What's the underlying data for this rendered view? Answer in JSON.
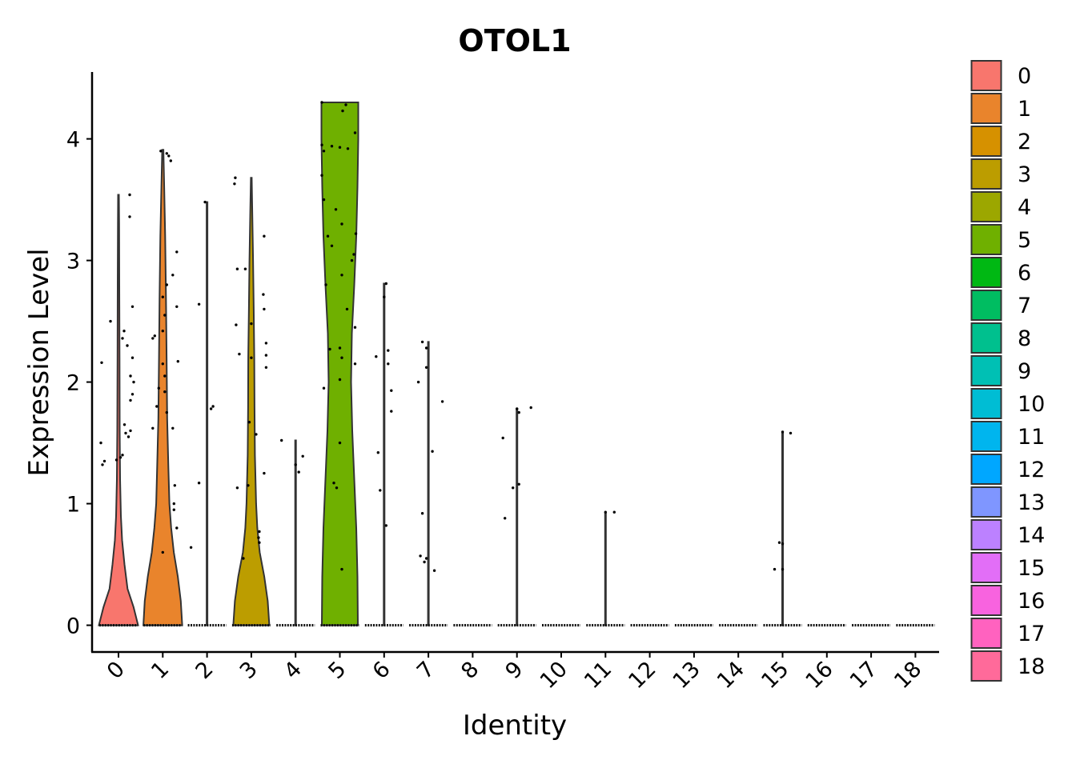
{
  "chart_data": {
    "type": "violin",
    "title": "OTOL1",
    "xlabel": "Identity",
    "ylabel": "Expression Level",
    "ylim": [
      -0.22,
      4.55
    ],
    "yticks": [
      0,
      1,
      2,
      3,
      4
    ],
    "categories": [
      "0",
      "1",
      "2",
      "3",
      "4",
      "5",
      "6",
      "7",
      "8",
      "9",
      "10",
      "11",
      "12",
      "13",
      "14",
      "15",
      "16",
      "17",
      "18"
    ],
    "colors": [
      "#F8766D",
      "#E9842C",
      "#D69100",
      "#BC9D00",
      "#9CA700",
      "#6FB000",
      "#00B813",
      "#00BD61",
      "#00C08E",
      "#00C0B4",
      "#00BDD4",
      "#00B5EE",
      "#00A7FF",
      "#7F96FF",
      "#BC81FF",
      "#E26EF7",
      "#F863DF",
      "#FF62BF",
      "#FF6A9A"
    ],
    "legend": {
      "position": "right",
      "entries": [
        "0",
        "1",
        "2",
        "3",
        "4",
        "5",
        "6",
        "7",
        "8",
        "9",
        "10",
        "11",
        "12",
        "13",
        "14",
        "15",
        "16",
        "17",
        "18"
      ]
    },
    "grid": false,
    "series": [
      {
        "name": "0",
        "max": 3.54,
        "shape": [
          [
            0,
            0.98
          ],
          [
            0.15,
            0.75
          ],
          [
            0.3,
            0.45
          ],
          [
            0.5,
            0.3
          ],
          [
            0.7,
            0.18
          ],
          [
            0.9,
            0.12
          ],
          [
            1.2,
            0.08
          ],
          [
            1.6,
            0.06
          ],
          [
            2.2,
            0.05
          ],
          [
            2.8,
            0.04
          ],
          [
            3.3,
            0.03
          ],
          [
            3.54,
            0.02
          ]
        ],
        "points": [
          [
            2.5,
            -0.2
          ],
          [
            2.16,
            -0.42
          ],
          [
            1.5,
            -0.44
          ],
          [
            1.35,
            -0.35
          ],
          [
            1.32,
            -0.4
          ],
          [
            1.4,
            0.1
          ],
          [
            1.38,
            0.05
          ],
          [
            1.36,
            -0.05
          ],
          [
            2.42,
            0.14
          ],
          [
            2.36,
            0.1
          ],
          [
            2.3,
            0.22
          ],
          [
            2.2,
            0.35
          ],
          [
            2.05,
            0.3
          ],
          [
            1.9,
            0.35
          ],
          [
            1.85,
            0.3
          ],
          [
            1.6,
            0.3
          ],
          [
            1.55,
            0.25
          ],
          [
            1.58,
            0.18
          ],
          [
            2.62,
            0.35
          ],
          [
            3.36,
            0.28
          ],
          [
            3.54,
            0.28
          ],
          [
            2.0,
            0.38
          ],
          [
            1.65,
            0.15
          ]
        ]
      },
      {
        "name": "1",
        "max": 3.91,
        "shape": [
          [
            0,
            0.97
          ],
          [
            0.2,
            0.9
          ],
          [
            0.4,
            0.75
          ],
          [
            0.6,
            0.55
          ],
          [
            0.8,
            0.42
          ],
          [
            1.0,
            0.33
          ],
          [
            1.3,
            0.28
          ],
          [
            1.7,
            0.22
          ],
          [
            2.2,
            0.19
          ],
          [
            2.7,
            0.16
          ],
          [
            3.2,
            0.12
          ],
          [
            3.6,
            0.07
          ],
          [
            3.91,
            0.03
          ]
        ],
        "points": [
          [
            3.9,
            -0.05
          ],
          [
            3.88,
            0.1
          ],
          [
            3.86,
            0.15
          ],
          [
            3.82,
            0.2
          ],
          [
            3.07,
            0.35
          ],
          [
            2.88,
            0.25
          ],
          [
            2.8,
            0.1
          ],
          [
            2.7,
            0.0
          ],
          [
            2.62,
            0.35
          ],
          [
            2.55,
            0.05
          ],
          [
            2.42,
            0.0
          ],
          [
            2.38,
            -0.2
          ],
          [
            2.36,
            -0.25
          ],
          [
            2.17,
            0.38
          ],
          [
            2.15,
            0.0
          ],
          [
            2.05,
            0.05
          ],
          [
            1.95,
            -0.1
          ],
          [
            1.92,
            0.05
          ],
          [
            1.8,
            -0.15
          ],
          [
            1.75,
            0.1
          ],
          [
            1.62,
            -0.25
          ],
          [
            1.62,
            0.25
          ],
          [
            1.15,
            0.3
          ],
          [
            1.0,
            0.28
          ],
          [
            0.95,
            0.28
          ],
          [
            0.8,
            0.35
          ],
          [
            0.6,
            0.0
          ]
        ]
      },
      {
        "name": "2",
        "max": 3.48,
        "shape": [
          [
            0,
            0.02
          ],
          [
            3.48,
            0.02
          ]
        ],
        "points": [
          [
            3.48,
            -0.05
          ],
          [
            2.64,
            -0.2
          ],
          [
            1.8,
            0.15
          ],
          [
            1.78,
            0.1
          ],
          [
            1.17,
            -0.2
          ],
          [
            0.64,
            -0.4
          ]
        ]
      },
      {
        "name": "3",
        "max": 3.68,
        "shape": [
          [
            0,
            0.9
          ],
          [
            0.2,
            0.82
          ],
          [
            0.4,
            0.65
          ],
          [
            0.6,
            0.42
          ],
          [
            0.8,
            0.3
          ],
          [
            1.0,
            0.24
          ],
          [
            1.4,
            0.18
          ],
          [
            1.8,
            0.16
          ],
          [
            2.2,
            0.15
          ],
          [
            2.6,
            0.12
          ],
          [
            3.0,
            0.09
          ],
          [
            3.4,
            0.05
          ],
          [
            3.68,
            0.02
          ]
        ],
        "points": [
          [
            3.68,
            -0.4
          ],
          [
            3.63,
            -0.42
          ],
          [
            3.2,
            0.32
          ],
          [
            2.93,
            -0.35
          ],
          [
            2.93,
            -0.15
          ],
          [
            2.72,
            0.3
          ],
          [
            2.6,
            0.32
          ],
          [
            2.48,
            0.0
          ],
          [
            2.47,
            -0.38
          ],
          [
            2.32,
            0.37
          ],
          [
            2.22,
            0.37
          ],
          [
            2.23,
            -0.3
          ],
          [
            2.2,
            0.0
          ],
          [
            2.12,
            0.37
          ],
          [
            1.67,
            -0.05
          ],
          [
            1.57,
            0.12
          ],
          [
            1.25,
            0.32
          ],
          [
            1.13,
            -0.35
          ],
          [
            1.15,
            -0.08
          ],
          [
            0.77,
            0.2
          ],
          [
            0.72,
            0.18
          ],
          [
            0.68,
            0.2
          ],
          [
            0.55,
            -0.2
          ]
        ]
      },
      {
        "name": "4",
        "max": 1.52,
        "shape": [
          [
            0,
            0.02
          ],
          [
            1.52,
            0.02
          ]
        ],
        "points": [
          [
            1.52,
            -0.35
          ],
          [
            1.39,
            0.18
          ],
          [
            1.32,
            0.0
          ],
          [
            1.26,
            0.08
          ]
        ]
      },
      {
        "name": "5",
        "max": 4.3,
        "shape": [
          [
            0,
            0.9
          ],
          [
            0.4,
            0.88
          ],
          [
            0.8,
            0.82
          ],
          [
            1.2,
            0.72
          ],
          [
            1.6,
            0.62
          ],
          [
            2.0,
            0.56
          ],
          [
            2.4,
            0.6
          ],
          [
            2.8,
            0.72
          ],
          [
            3.2,
            0.82
          ],
          [
            3.6,
            0.88
          ],
          [
            4.0,
            0.92
          ],
          [
            4.3,
            0.92
          ]
        ],
        "points": [
          [
            4.3,
            -0.45
          ],
          [
            4.28,
            0.15
          ],
          [
            4.23,
            0.07
          ],
          [
            4.05,
            0.38
          ],
          [
            3.95,
            -0.45
          ],
          [
            3.94,
            -0.2
          ],
          [
            3.93,
            0.0
          ],
          [
            3.92,
            0.2
          ],
          [
            3.9,
            -0.4
          ],
          [
            3.7,
            -0.45
          ],
          [
            3.5,
            -0.4
          ],
          [
            3.42,
            -0.1
          ],
          [
            3.3,
            0.05
          ],
          [
            3.22,
            0.4
          ],
          [
            3.2,
            -0.3
          ],
          [
            3.12,
            -0.2
          ],
          [
            3.05,
            0.35
          ],
          [
            3.0,
            0.3
          ],
          [
            2.88,
            0.05
          ],
          [
            2.8,
            -0.35
          ],
          [
            2.6,
            0.18
          ],
          [
            2.45,
            0.38
          ],
          [
            2.27,
            -0.25
          ],
          [
            2.28,
            0.0
          ],
          [
            2.2,
            0.05
          ],
          [
            2.15,
            0.38
          ],
          [
            2.02,
            0.0
          ],
          [
            1.95,
            -0.4
          ],
          [
            1.5,
            0.0
          ],
          [
            1.17,
            -0.15
          ],
          [
            1.13,
            -0.08
          ],
          [
            0.46,
            0.05
          ]
        ]
      },
      {
        "name": "6",
        "max": 2.81,
        "shape": [
          [
            0,
            0.02
          ],
          [
            2.81,
            0.02
          ]
        ],
        "points": [
          [
            2.81,
            0.05
          ],
          [
            2.7,
            0.0
          ],
          [
            2.26,
            0.1
          ],
          [
            2.21,
            -0.2
          ],
          [
            2.15,
            0.1
          ],
          [
            1.93,
            0.18
          ],
          [
            1.76,
            0.18
          ],
          [
            1.42,
            -0.15
          ],
          [
            1.11,
            -0.1
          ],
          [
            0.82,
            0.05
          ]
        ]
      },
      {
        "name": "7",
        "max": 2.33,
        "shape": [
          [
            0,
            0.02
          ],
          [
            2.33,
            0.02
          ]
        ],
        "points": [
          [
            2.33,
            -0.15
          ],
          [
            2.28,
            -0.05
          ],
          [
            2.12,
            -0.05
          ],
          [
            2.0,
            -0.25
          ],
          [
            1.84,
            0.35
          ],
          [
            1.43,
            0.1
          ],
          [
            0.92,
            -0.15
          ],
          [
            0.57,
            -0.2
          ],
          [
            0.52,
            -0.1
          ],
          [
            0.45,
            0.15
          ],
          [
            0.55,
            -0.05
          ]
        ]
      },
      {
        "name": "9",
        "max": 1.78,
        "shape": [
          [
            0,
            0.02
          ],
          [
            1.78,
            0.02
          ]
        ],
        "points": [
          [
            1.79,
            0.35
          ],
          [
            1.78,
            0.0
          ],
          [
            1.75,
            0.05
          ],
          [
            1.54,
            -0.35
          ],
          [
            1.16,
            0.05
          ],
          [
            1.13,
            -0.1
          ],
          [
            0.88,
            -0.3
          ]
        ]
      },
      {
        "name": "11",
        "max": 0.92,
        "shape": [
          [
            0,
            0.02
          ],
          [
            0.92,
            0.02
          ]
        ],
        "points": [
          [
            0.93,
            0.0
          ],
          [
            0.93,
            0.22
          ]
        ]
      },
      {
        "name": "15",
        "max": 1.58,
        "shape": [
          [
            0,
            0.02
          ],
          [
            1.58,
            0.02
          ]
        ],
        "points": [
          [
            1.59,
            0.0
          ],
          [
            1.58,
            0.2
          ],
          [
            0.68,
            -0.08
          ],
          [
            0.67,
            0.0
          ],
          [
            0.46,
            -0.2
          ],
          [
            0.46,
            0.0
          ]
        ]
      }
    ]
  }
}
